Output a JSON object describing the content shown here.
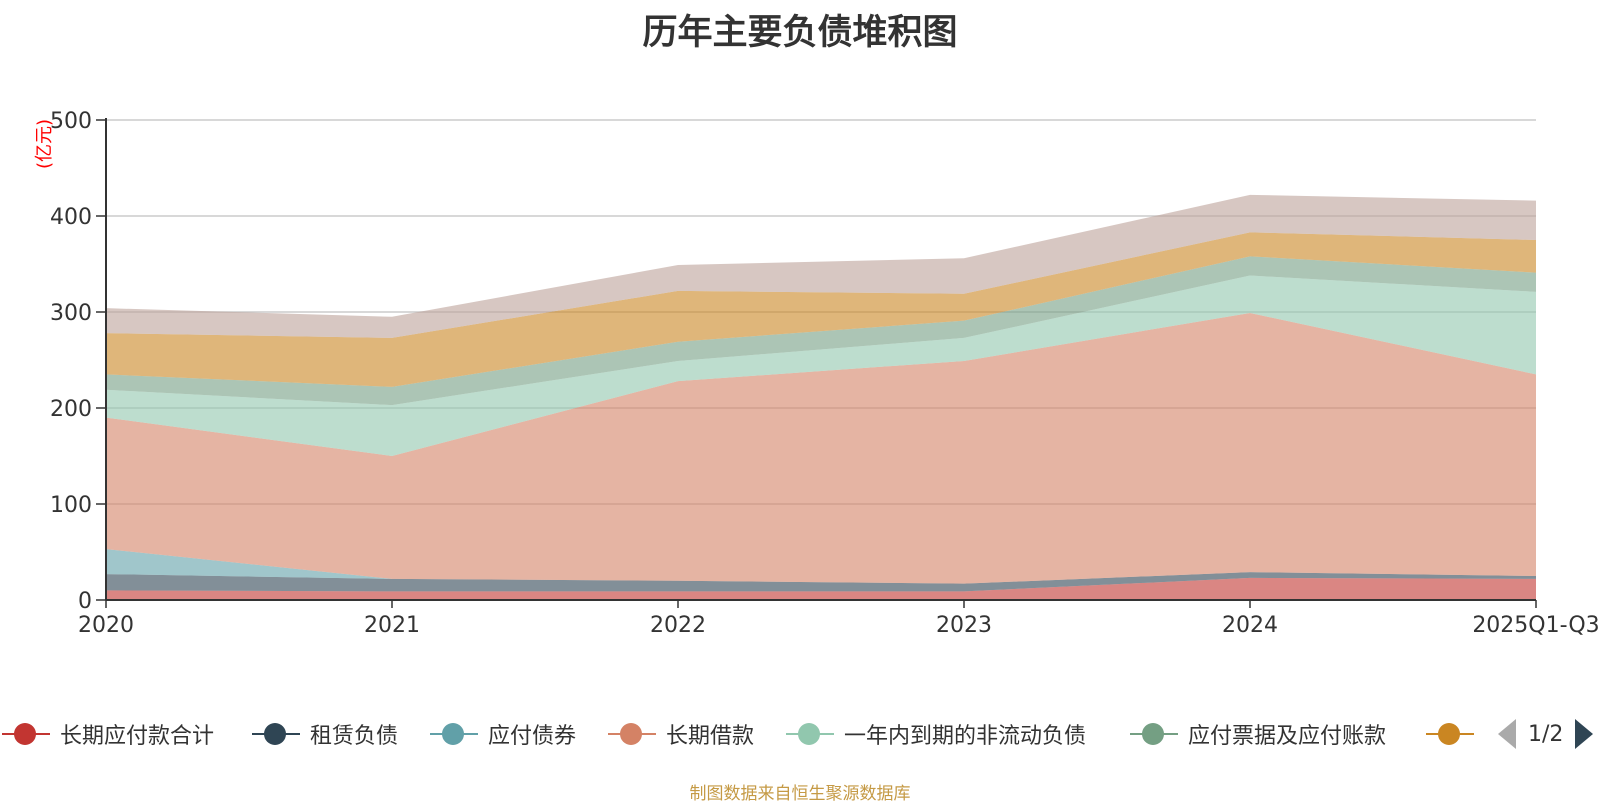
{
  "chart_data": {
    "type": "area",
    "stacked": true,
    "title": "历年主要负债堆积图",
    "unit_label": "(亿元)",
    "categories": [
      "2020",
      "2021",
      "2022",
      "2023",
      "2024",
      "2025Q1-Q3"
    ],
    "ylim": [
      0,
      500
    ],
    "yticks": [
      0,
      100,
      200,
      300,
      400,
      500
    ],
    "grid": true,
    "series": [
      {
        "name": "长期应付款合计",
        "color": "#c23531",
        "values": [
          10,
          9,
          9,
          9,
          23,
          22
        ]
      },
      {
        "name": "租赁负债",
        "color": "#2f4554",
        "values": [
          17,
          13,
          11,
          8,
          6,
          3
        ]
      },
      {
        "name": "应付债券",
        "color": "#61a0a8",
        "values": [
          26,
          0,
          0,
          0,
          0,
          0
        ]
      },
      {
        "name": "长期借款",
        "color": "#d48265",
        "values": [
          137,
          128,
          208,
          232,
          270,
          210
        ]
      },
      {
        "name": "一年内到期的非流动负债",
        "color": "#91c7ae",
        "values": [
          29,
          53,
          21,
          24,
          39,
          86
        ]
      },
      {
        "name": "应付票据及应付账款",
        "color": "#749f83",
        "values": [
          16,
          19,
          20,
          18,
          20,
          20
        ]
      },
      {
        "name": "",
        "color": "#ca8622",
        "values": [
          43,
          51,
          53,
          28,
          25,
          34
        ]
      },
      {
        "name": "",
        "color": "#bda29a",
        "values": [
          26,
          22,
          27,
          37,
          39,
          41
        ]
      }
    ]
  },
  "legend": {
    "page_text": "1/2",
    "prev_icon": "triangle-left-icon",
    "next_icon": "triangle-right-icon"
  },
  "footer": {
    "source_note": "制图数据来自恒生聚源数据库"
  }
}
